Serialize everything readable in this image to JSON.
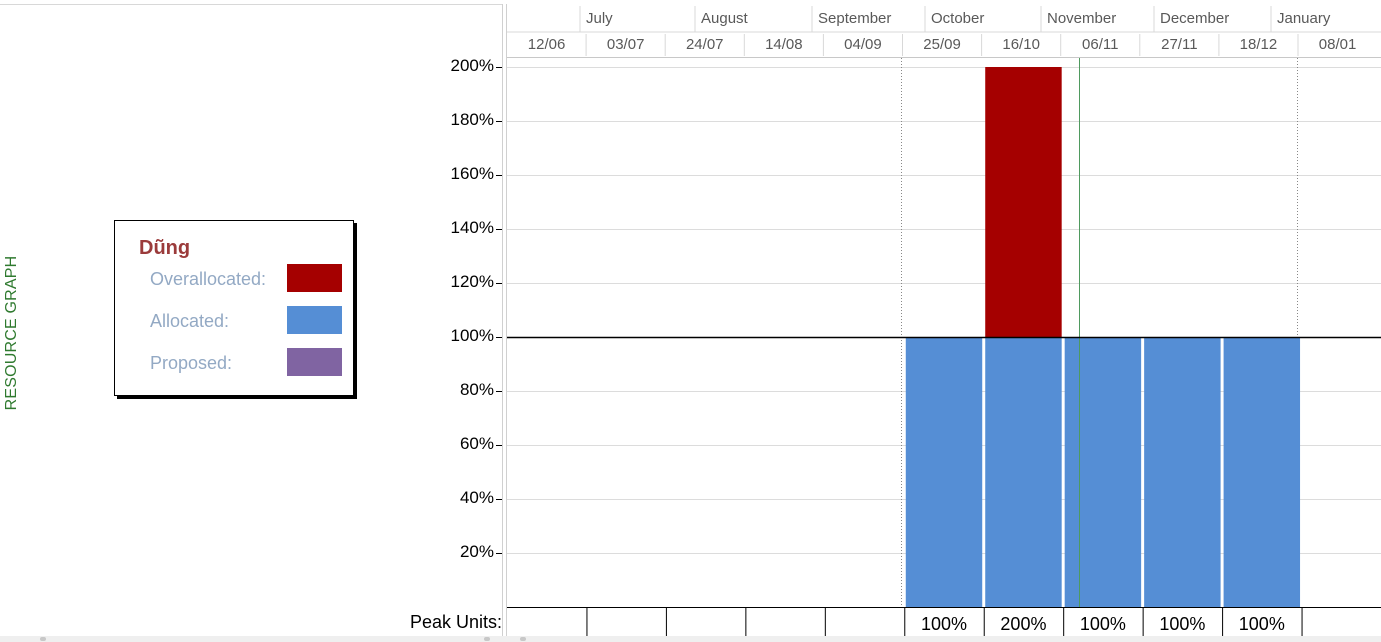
{
  "side_title": "RESOURCE GRAPH",
  "legend": {
    "resource_name": "Dũng",
    "items": [
      {
        "label": "Overallocated:",
        "color": "#a50000"
      },
      {
        "label": "Allocated:",
        "color": "#558ed5"
      },
      {
        "label": "Proposed:",
        "color": "#8064a2"
      }
    ]
  },
  "timescale": {
    "months": [
      "July",
      "August",
      "September",
      "October",
      "November",
      "December",
      "January"
    ],
    "weeks": [
      "12/06",
      "03/07",
      "24/07",
      "14/08",
      "04/09",
      "25/09",
      "16/10",
      "06/11",
      "27/11",
      "18/12",
      "08/01"
    ]
  },
  "peak_units_label": "Peak Units:",
  "chart_data": {
    "type": "bar",
    "stacked": true,
    "categories": [
      "12/06",
      "03/07",
      "24/07",
      "14/08",
      "04/09",
      "25/09",
      "16/10",
      "06/11",
      "27/11",
      "18/12",
      "08/01"
    ],
    "series": [
      {
        "name": "Allocated",
        "color": "#558ed5",
        "values": [
          0,
          0,
          0,
          0,
          0,
          100,
          100,
          100,
          100,
          100,
          0
        ]
      },
      {
        "name": "Overallocated",
        "color": "#a50000",
        "values": [
          0,
          0,
          0,
          0,
          0,
          0,
          100,
          0,
          0,
          0,
          0
        ]
      }
    ],
    "peak_units": [
      "",
      "",
      "",
      "",
      "",
      "100%",
      "200%",
      "100%",
      "100%",
      "100%",
      ""
    ],
    "y_ticks": [
      "20%",
      "40%",
      "60%",
      "80%",
      "100%",
      "120%",
      "140%",
      "160%",
      "180%",
      "200%"
    ],
    "y_unit": "%",
    "ylim": [
      0,
      200
    ],
    "max_units_line": 100,
    "gridlines": true
  }
}
